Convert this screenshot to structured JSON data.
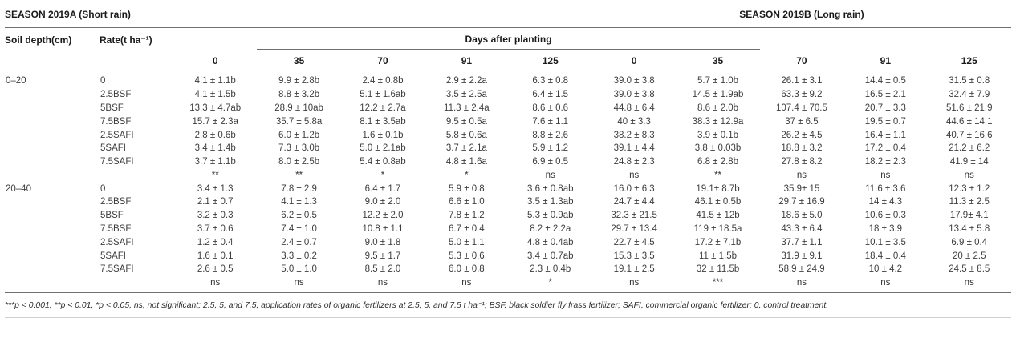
{
  "table": {
    "season_a_header": "SEASON 2019A (Short rain)",
    "season_b_header": "SEASON 2019B (Long rain)",
    "col_soil_depth": "Soil depth(cm)",
    "col_rate": "Rate(t ha⁻¹)",
    "days_after_planting": "Days after planting",
    "day_columns": [
      "0",
      "35",
      "70",
      "91",
      "125",
      "0",
      "35",
      "70",
      "91",
      "125"
    ],
    "groups": [
      {
        "soil_depth": "0–20",
        "rows": [
          {
            "rate": "0",
            "values": [
              "4.1 ± 1.1b",
              "9.9 ± 2.8b",
              "2.4 ± 0.8b",
              "2.9 ± 2.2a",
              "6.3 ± 0.8",
              "39.0 ± 3.8",
              "5.7 ± 1.0b",
              "26.1 ± 3.1",
              "14.4 ± 0.5",
              "31.5 ± 0.8"
            ]
          },
          {
            "rate": "2.5BSF",
            "values": [
              "4.1 ± 1.5b",
              "8.8 ± 3.2b",
              "5.1 ± 1.6ab",
              "3.5 ± 2.5a",
              "6.4 ± 1.5",
              "39.0 ± 3.8",
              "14.5 ± 1.9ab",
              "63.3 ± 9.2",
              "16.5 ± 2.1",
              "32.4 ± 7.9"
            ]
          },
          {
            "rate": "5BSF",
            "values": [
              "13.3 ± 4.7ab",
              "28.9 ± 10ab",
              "12.2 ± 2.7a",
              "11.3 ± 2.4a",
              "8.6 ± 0.6",
              "44.8 ± 6.4",
              "8.6 ± 2.0b",
              "107.4 ± 70.5",
              "20.7 ± 3.3",
              "51.6 ± 21.9"
            ]
          },
          {
            "rate": "7.5BSF",
            "values": [
              "15.7 ± 2.3a",
              "35.7 ± 5.8a",
              "8.1 ± 3.5ab",
              "9.5 ± 0.5a",
              "7.6 ± 1.1",
              "40 ± 3.3",
              "38.3 ± 12.9a",
              "37 ± 6.5",
              "19.5 ± 0.7",
              "44.6 ± 14.1"
            ]
          },
          {
            "rate": "2.5SAFI",
            "values": [
              "2.8 ± 0.6b",
              "6.0 ± 1.2b",
              "1.6 ± 0.1b",
              "5.8 ± 0.6a",
              "8.8 ± 2.6",
              "38.2 ± 8.3",
              "3.9 ± 0.1b",
              "26.2 ± 4.5",
              "16.4 ± 1.1",
              "40.7 ± 16.6"
            ]
          },
          {
            "rate": "5SAFI",
            "values": [
              "3.4 ± 1.4b",
              "7.3 ± 3.0b",
              "5.0 ± 2.1ab",
              "3.7 ± 2.1a",
              "5.9 ± 1.2",
              "39.1 ± 4.4",
              "3.8 ± 0.03b",
              "18.8 ± 3.2",
              "17.2 ± 0.4",
              "21.2 ± 6.2"
            ]
          },
          {
            "rate": "7.5SAFI",
            "values": [
              "3.7 ± 1.1b",
              "8.0 ± 2.5b",
              "5.4 ± 0.8ab",
              "4.8 ± 1.6a",
              "6.9 ± 0.5",
              "24.8 ± 2.3",
              "6.8 ± 2.8b",
              "27.8 ± 8.2",
              "18.2 ± 2.3",
              "41.9 ± 14"
            ]
          }
        ],
        "significance": [
          "**",
          "**",
          "*",
          "*",
          "ns",
          "ns",
          "**",
          "ns",
          "ns",
          "ns"
        ]
      },
      {
        "soil_depth": "20–40",
        "rows": [
          {
            "rate": "0",
            "values": [
              "3.4 ± 1.3",
              "7.8 ± 2.9",
              "6.4 ± 1.7",
              "5.9 ± 0.8",
              "3.6 ± 0.8ab",
              "16.0 ± 6.3",
              "19.1± 8.7b",
              "35.9± 15",
              "11.6 ± 3.6",
              "12.3 ± 1.2"
            ]
          },
          {
            "rate": "2.5BSF",
            "values": [
              "2.1 ± 0.7",
              "4.1 ± 1.3",
              "9.0 ± 2.0",
              "6.6 ± 1.0",
              "3.5 ± 1.3ab",
              "24.7 ± 4.4",
              "46.1 ± 0.5b",
              "29.7 ± 16.9",
              "14 ± 4.3",
              "11.3 ± 2.5"
            ]
          },
          {
            "rate": "5BSF",
            "values": [
              "3.2 ± 0.3",
              "6.2 ± 0.5",
              "12.2 ± 2.0",
              "7.8 ± 1.2",
              "5.3 ± 0.9ab",
              "32.3 ± 21.5",
              "41.5 ± 12b",
              "18.6 ± 5.0",
              "10.6 ± 0.3",
              "17.9± 4.1"
            ]
          },
          {
            "rate": "7.5BSF",
            "values": [
              "3.7 ± 0.6",
              "7.4 ± 1.0",
              "10.8 ± 1.1",
              "6.7 ± 0.4",
              "8.2 ± 2.2a",
              "29.7 ± 13.4",
              "119 ± 18.5a",
              "43.3 ± 6.4",
              "18 ± 3.9",
              "13.4 ± 5.8"
            ]
          },
          {
            "rate": "2.5SAFI",
            "values": [
              "1.2 ± 0.4",
              "2.4 ± 0.7",
              "9.0 ± 1.8",
              "5.0 ± 1.1",
              "4.8 ± 0.4ab",
              "22.7 ± 4.5",
              "17.2 ± 7.1b",
              "37.7 ± 1.1",
              "10.1 ± 3.5",
              "6.9 ± 0.4"
            ]
          },
          {
            "rate": "5SAFI",
            "values": [
              "1.6 ± 0.1",
              "3.3 ± 0.2",
              "9.5 ± 1.7",
              "5.3 ± 0.6",
              "3.4 ± 0.7ab",
              "15.3 ± 3.5",
              "11 ± 1.5b",
              "31.9 ± 9.1",
              "18.4 ± 0.4",
              "20 ± 2.5"
            ]
          },
          {
            "rate": "7.5SAFI",
            "values": [
              "2.6 ± 0.5",
              "5.0 ± 1.0",
              "8.5 ± 2.0",
              "6.0 ± 0.8",
              "2.3 ± 0.4b",
              "19.1 ± 2.5",
              "32 ± 11.5b",
              "58.9 ± 24.9",
              "10 ± 4.2",
              "24.5 ± 8.5"
            ]
          }
        ],
        "significance": [
          "ns",
          "ns",
          "ns",
          "ns",
          "*",
          "ns",
          "***",
          "ns",
          "ns",
          "ns"
        ]
      }
    ],
    "footnote": "***p < 0.001, **p < 0.01, *p < 0.05, ns, not significant; 2.5, 5, and 7.5, application rates of organic fertilizers at 2.5, 5, and 7.5 t ha⁻¹; BSF, black soldier fly frass fertilizer; SAFI, commercial organic fertilizer; 0, control treatment."
  }
}
